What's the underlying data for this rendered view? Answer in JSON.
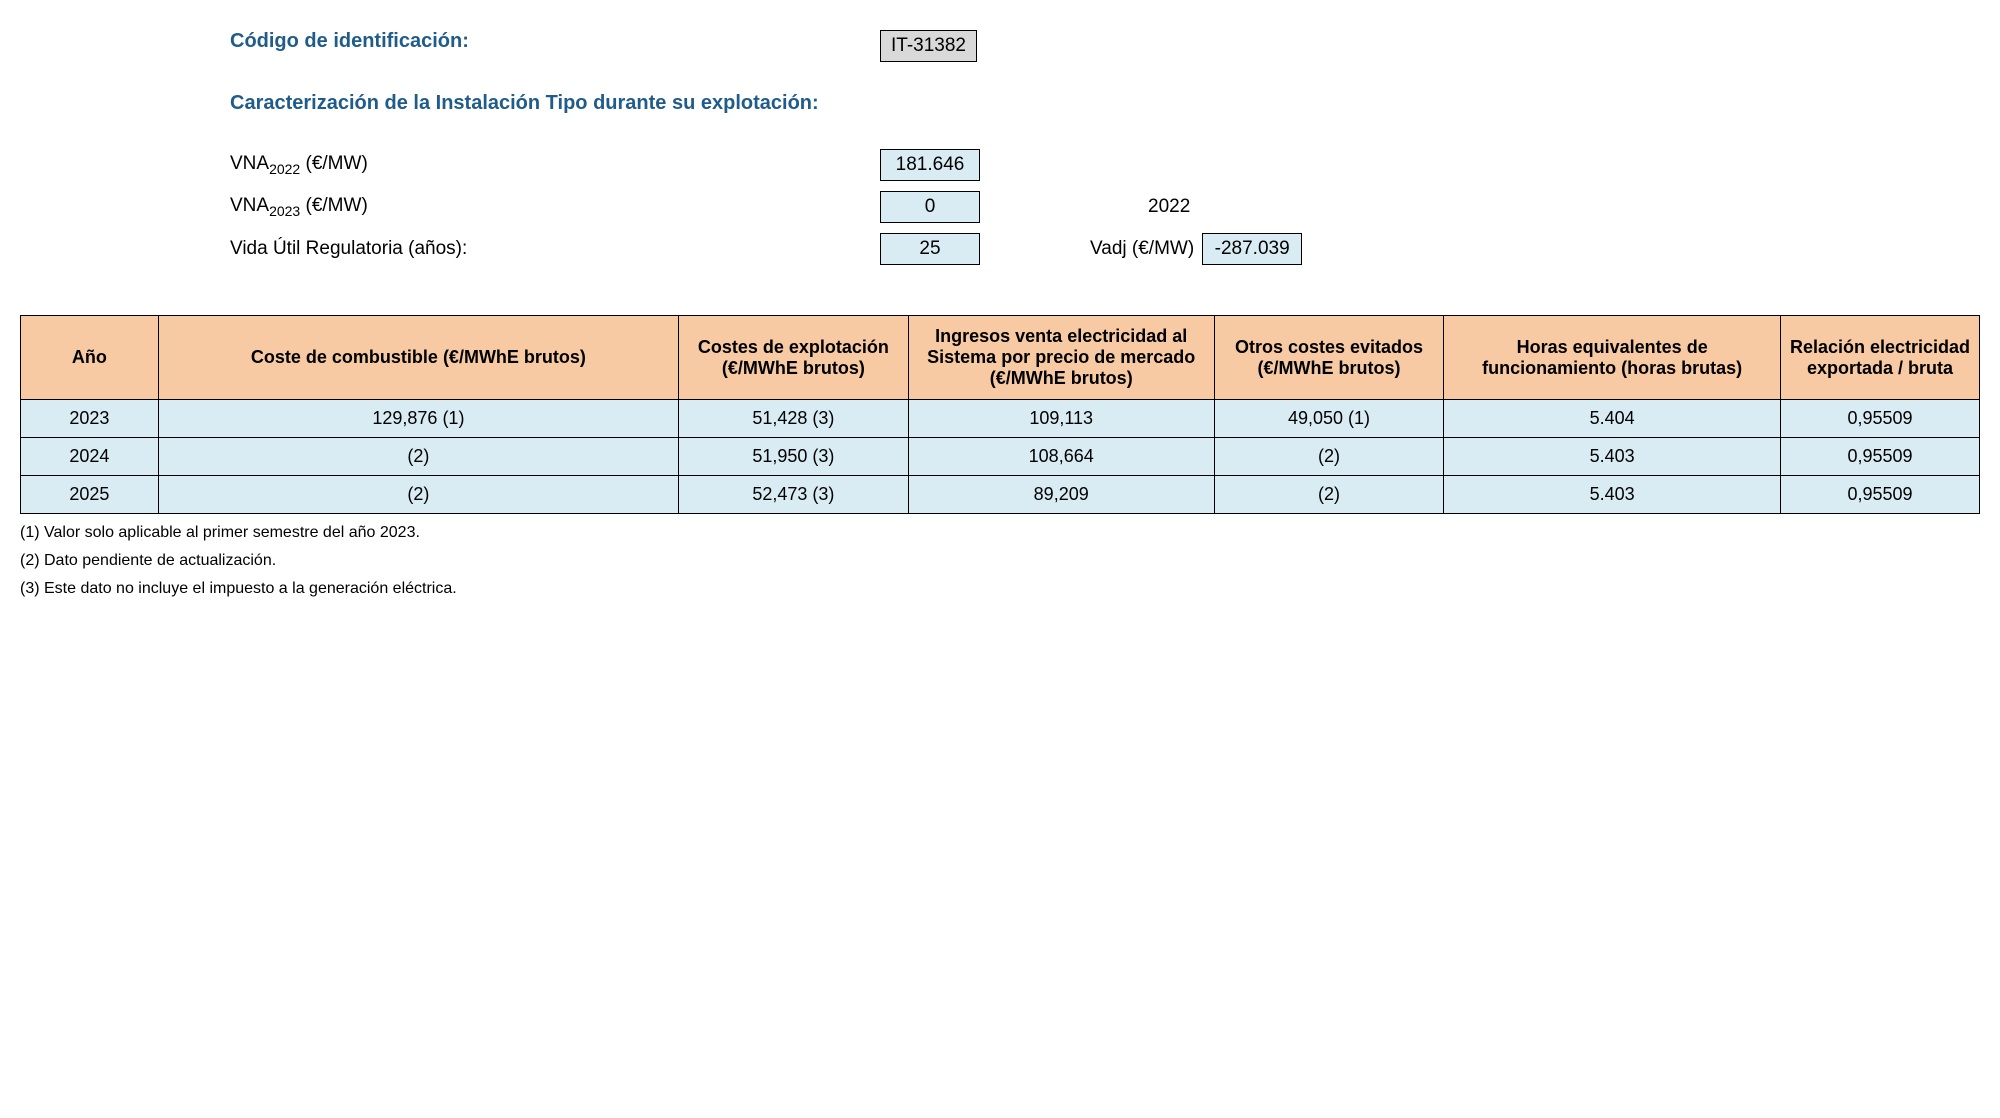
{
  "header": {
    "id_label": "Código de identificación:",
    "id_value": "IT-31382",
    "section_title": "Caracterización de la Instalación Tipo durante su explotación:"
  },
  "params": {
    "vna2022": {
      "label_prefix": "VNA",
      "label_sub": "2022",
      "label_suffix": " (€/MW)",
      "value": "181.646"
    },
    "vna2023": {
      "label_prefix": "VNA",
      "label_sub": "2023",
      "label_suffix": " (€/MW)",
      "value": "0",
      "extra_year": "2022"
    },
    "vida_util": {
      "label": "Vida Útil Regulatoria (años):",
      "value": "25",
      "vadj_label": "Vadj (€/MW)",
      "vadj_value": "-287.039"
    }
  },
  "table": {
    "columns": [
      "Año",
      "Coste de combustible (€/MWhE brutos)",
      "Costes de explotación (€/MWhE brutos)",
      "Ingresos venta electricidad al Sistema por precio de mercado (€/MWhE brutos)",
      "Otros costes evitados (€/MWhE brutos)",
      "Horas equivalentes de funcionamiento (horas brutas)",
      "Relación electricidad exportada / bruta"
    ],
    "rows": [
      [
        "2023",
        "129,876 (1)",
        "51,428 (3)",
        "109,113",
        "49,050 (1)",
        "5.404",
        "0,95509"
      ],
      [
        "2024",
        "(2)",
        "51,950 (3)",
        "108,664",
        "(2)",
        "5.403",
        "0,95509"
      ],
      [
        "2025",
        "(2)",
        "52,473 (3)",
        "89,209",
        "(2)",
        "5.403",
        "0,95509"
      ]
    ]
  },
  "footnotes": [
    "(1) Valor solo aplicable al primer semestre del año 2023.",
    "(2) Dato pendiente de actualización.",
    "(3) Este dato no incluye el impuesto a la generación eléctrica."
  ],
  "styling": {
    "header_color": "#1f5c8b",
    "th_bg": "#f8caa3",
    "td_bg": "#d9ecf4",
    "id_box_bg": "#d9d9d9",
    "border_color": "#000000"
  }
}
